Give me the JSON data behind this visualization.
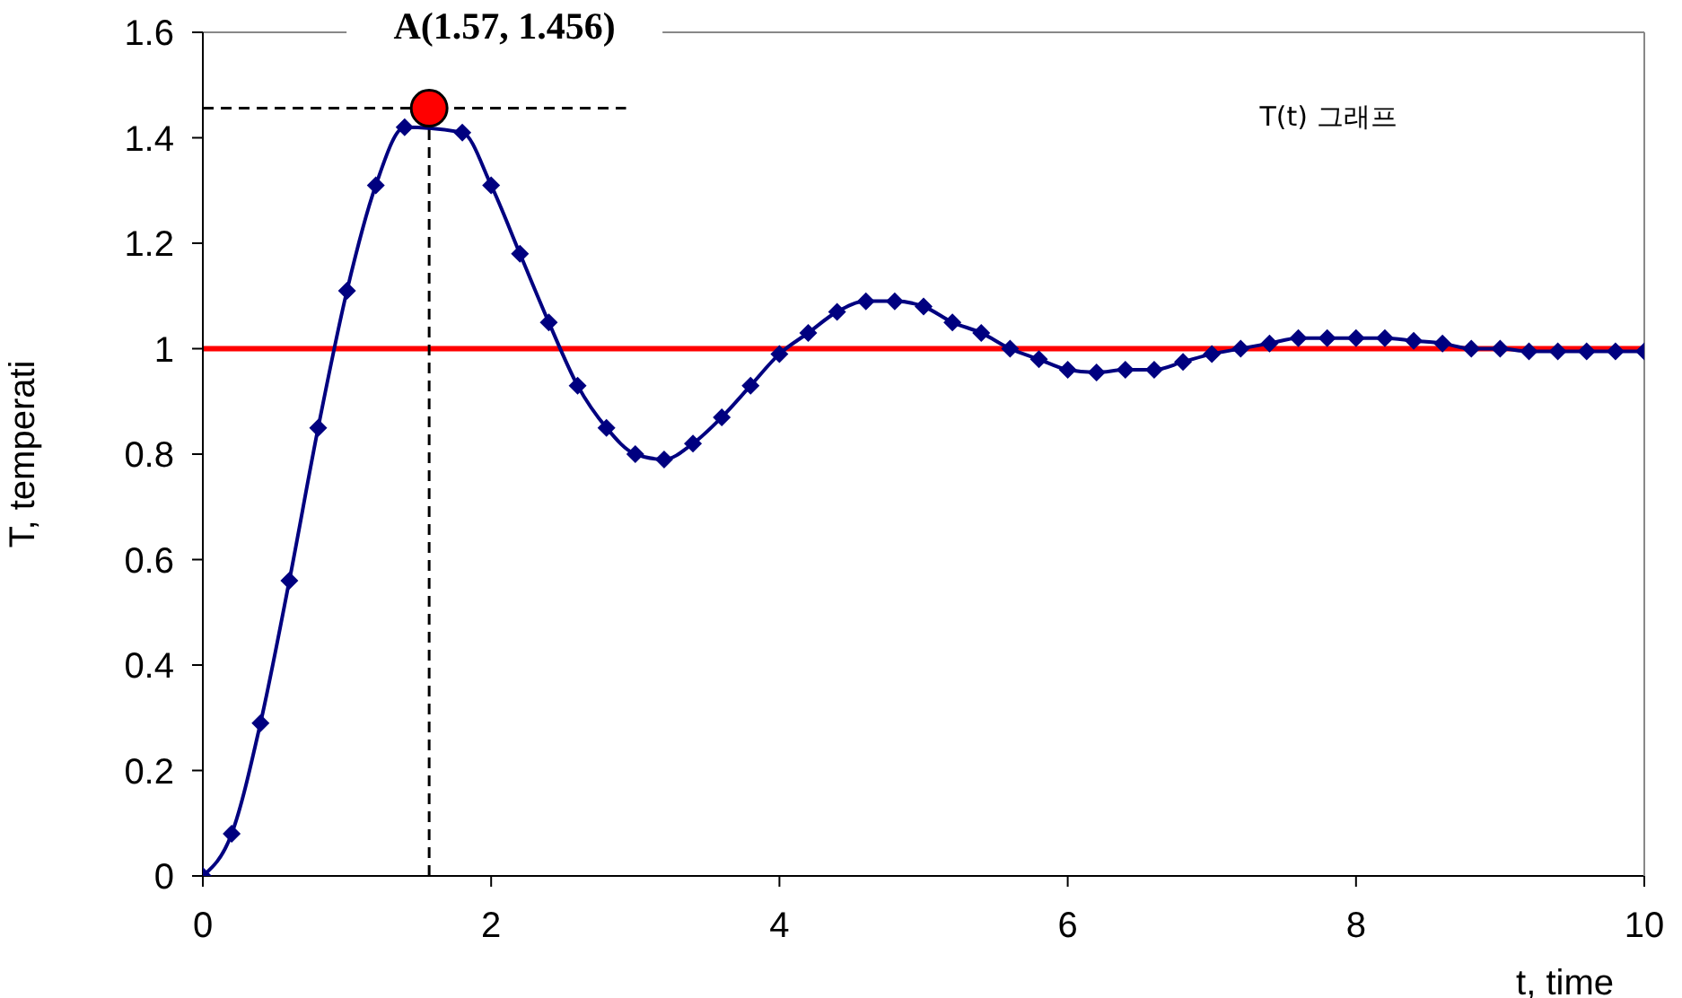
{
  "chart_data": {
    "type": "line",
    "xlabel": "t, time",
    "ylabel": "T, temperati",
    "annotations": [
      {
        "text": "A(1.57, 1.456)",
        "x": 1.57,
        "y": 1.456
      },
      "T(t) 그래프"
    ],
    "x": [
      0,
      0.2,
      0.4,
      0.6,
      0.8,
      1.0,
      1.2,
      1.4,
      1.6,
      1.8,
      2.0,
      2.2,
      2.4,
      2.6,
      2.8,
      3.0,
      3.2,
      3.4,
      3.6,
      3.8,
      4.0,
      4.2,
      4.4,
      4.6,
      4.8,
      5.0,
      5.2,
      5.4,
      5.6,
      5.8,
      6.0,
      6.2,
      6.4,
      6.6,
      6.8,
      7.0,
      7.2,
      7.4,
      7.6,
      7.8,
      8.0,
      8.2,
      8.4,
      8.6,
      8.8,
      9.0,
      9.2,
      9.4,
      9.6,
      9.8,
      10.0
    ],
    "series": [
      {
        "color": "#000080",
        "values": [
          0,
          0.08,
          0.29,
          0.56,
          0.85,
          1.11,
          1.31,
          1.42,
          null,
          1.41,
          1.31,
          1.18,
          1.05,
          0.93,
          0.85,
          0.8,
          0.79,
          0.82,
          0.87,
          0.93,
          0.99,
          1.03,
          1.07,
          1.09,
          1.09,
          1.08,
          1.05,
          1.03,
          1.0,
          0.98,
          0.96,
          0.955,
          0.96,
          0.96,
          0.975,
          0.99,
          1.0,
          1.01,
          1.02,
          1.02,
          1.02,
          1.02,
          1.015,
          1.01,
          1.0,
          1.0,
          0.995,
          0.995,
          0.995,
          0.995,
          0.995
        ]
      }
    ],
    "xlim": [
      0,
      10
    ],
    "xticks": [
      0,
      2,
      4,
      6,
      8,
      10
    ],
    "ylim": [
      0,
      1.6
    ],
    "yticks": [
      0,
      0.2,
      0.4,
      0.6,
      0.8,
      1,
      1.2,
      1.4,
      1.6
    ],
    "ref_lines": [
      {
        "axis": "y",
        "value": 1,
        "color": "#ff0000"
      },
      {
        "axis": "x",
        "value": 1.57,
        "color": "#000000",
        "line_style": "dashed"
      },
      {
        "axis": "y",
        "value": 1.456,
        "color": "#000000",
        "line_style": "dashed"
      }
    ],
    "marker": "diamond"
  }
}
